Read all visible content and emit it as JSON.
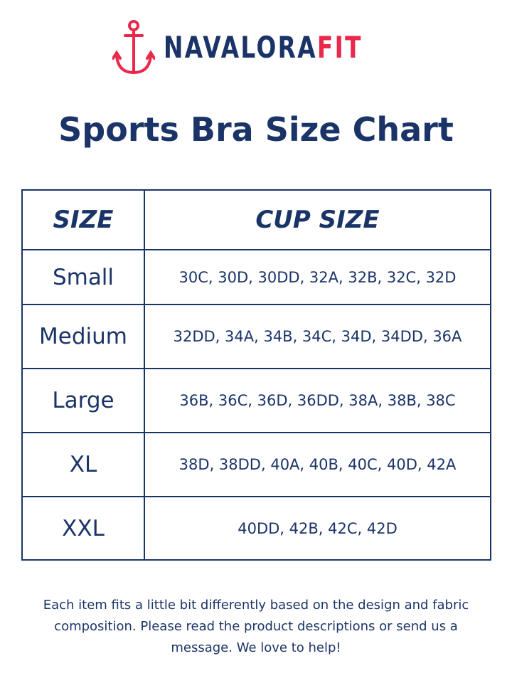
{
  "brand": {
    "name_primary": "NAVALORA",
    "name_accent": "FIT",
    "logo_icon": "anchor-icon",
    "colors": {
      "navy": "#1b3468",
      "red": "#e8294c"
    }
  },
  "title": "Sports Bra Size Chart",
  "table": {
    "headers": [
      "SIZE",
      "CUP SIZE"
    ],
    "rows": [
      {
        "size": "Small",
        "cups": "30C, 30D, 30DD, 32A, 32B, 32C, 32D"
      },
      {
        "size": "Medium",
        "cups": "32DD, 34A, 34B, 34C, 34D, 34DD, 36A"
      },
      {
        "size": "Large",
        "cups": "36B, 36C, 36D, 36DD, 38A, 38B, 38C"
      },
      {
        "size": "XL",
        "cups": "38D, 38DD, 40A, 40B, 40C, 40D, 42A"
      },
      {
        "size": "XXL",
        "cups": "40DD, 42B, 42C, 42D"
      }
    ]
  },
  "note": "Each item fits a little bit differently based on the design and fabric composition.  Please read the product descriptions or send us a message. We love to help!"
}
